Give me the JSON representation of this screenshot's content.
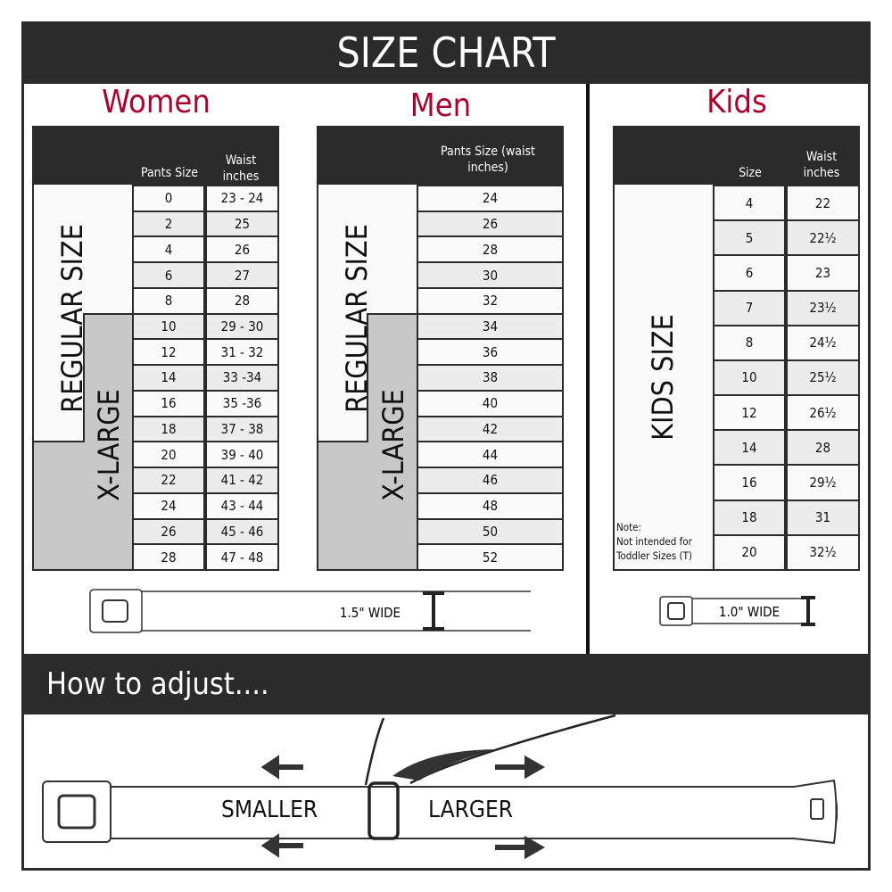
{
  "title": "SIZE CHART",
  "colors": {
    "accent": "#a6032f",
    "dark": "#2b2b2b",
    "xlarge_gray": "#c8c8c8"
  },
  "women": {
    "heading": "Women",
    "col1": "Pants Size",
    "col2": "Waist inches",
    "regular_label": "REGULAR SIZE",
    "xlarge_label": "X-LARGE",
    "rows": [
      [
        "0",
        "23 - 24"
      ],
      [
        "2",
        "25"
      ],
      [
        "4",
        "26"
      ],
      [
        "6",
        "27"
      ],
      [
        "8",
        "28"
      ],
      [
        "10",
        "29 - 30"
      ],
      [
        "12",
        "31 - 32"
      ],
      [
        "14",
        "33 -34"
      ],
      [
        "16",
        "35 -36"
      ],
      [
        "18",
        "37 - 38"
      ],
      [
        "20",
        "39 - 40"
      ],
      [
        "22",
        "41 - 42"
      ],
      [
        "24",
        "43 - 44"
      ],
      [
        "26",
        "45 - 46"
      ],
      [
        "28",
        "47 - 48"
      ]
    ],
    "belt_width": "1.5\" WIDE"
  },
  "men": {
    "heading": "Men",
    "col1": "Pants Size (waist inches)",
    "regular_label": "REGULAR SIZE",
    "xlarge_label": "X-LARGE",
    "rows": [
      "24",
      "26",
      "28",
      "30",
      "32",
      "34",
      "36",
      "38",
      "40",
      "42",
      "44",
      "46",
      "48",
      "50",
      "52"
    ]
  },
  "kids": {
    "heading": "Kids",
    "col1": "Size",
    "col2": "Waist inches",
    "label": "KIDS SIZE",
    "note": "Note:\nNot intended for\nToddler Sizes (T)",
    "rows": [
      [
        "4",
        "22"
      ],
      [
        "5",
        "22½"
      ],
      [
        "6",
        "23"
      ],
      [
        "7",
        "23½"
      ],
      [
        "8",
        "24½"
      ],
      [
        "10",
        "25½"
      ],
      [
        "12",
        "26½"
      ],
      [
        "14",
        "28"
      ],
      [
        "16",
        "29½"
      ],
      [
        "18",
        "31"
      ],
      [
        "20",
        "32½"
      ]
    ],
    "belt_width": "1.0\" WIDE"
  },
  "adjust": {
    "heading": "How to adjust....",
    "smaller": "SMALLER",
    "larger": "LARGER"
  }
}
